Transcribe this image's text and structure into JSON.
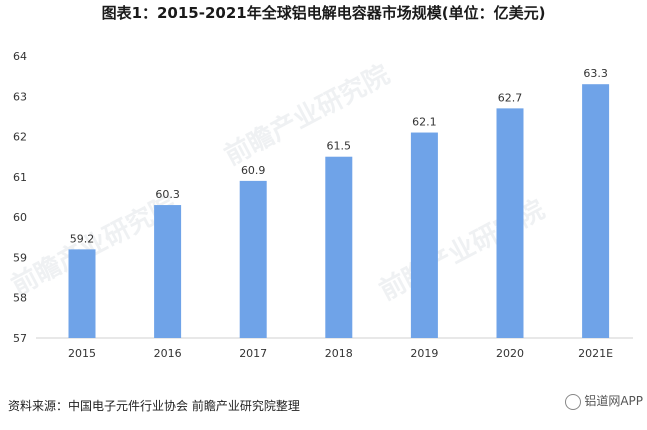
{
  "chart_data": {
    "type": "bar",
    "title": "图表1：2015-2021年全球铝电解电容器市场规模(单位：亿美元)",
    "categories": [
      "2015",
      "2016",
      "2017",
      "2018",
      "2019",
      "2020",
      "2021E"
    ],
    "values": [
      59.2,
      60.3,
      60.9,
      61.5,
      62.1,
      62.7,
      63.3
    ],
    "ylim": [
      57,
      64
    ],
    "yticks": [
      "57",
      "58",
      "59",
      "60",
      "61",
      "62",
      "63",
      "64"
    ],
    "data_labels": [
      "59.2",
      "60.3",
      "60.9",
      "61.5",
      "62.1",
      "62.7",
      "63.3"
    ],
    "bar_color": "#6fa3e8",
    "grid": false
  },
  "source": "资料来源：中国电子元件行业协会 前瞻产业研究院整理",
  "watermark": {
    "brand": "前瞻产业研究院",
    "corner_text": "铝道网APP"
  }
}
